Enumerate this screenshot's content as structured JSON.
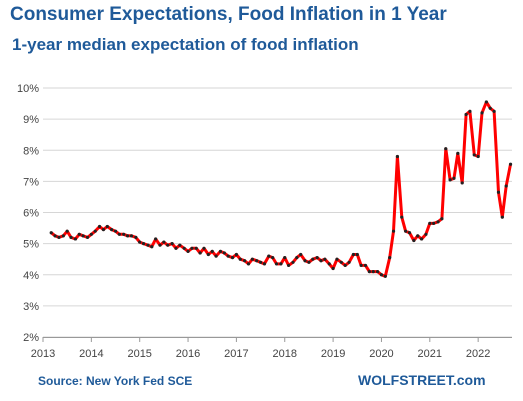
{
  "chart_data": {
    "type": "line",
    "title": "Consumer Expectations, Food Inflation in 1 Year",
    "subtitle": "1-year median expectation of food inflation",
    "source": "Source: New York Fed SCE",
    "brand": "WOLFSTREET.com",
    "xlabel": "",
    "ylabel": "",
    "xlim": [
      2013,
      2022.7
    ],
    "ylim": [
      2,
      10
    ],
    "y_ticks": [
      2,
      3,
      4,
      5,
      6,
      7,
      8,
      9,
      10
    ],
    "y_tick_labels": [
      "2%",
      "3%",
      "4%",
      "5%",
      "6%",
      "7%",
      "8%",
      "9%",
      "10%"
    ],
    "x_ticks": [
      2013,
      2014,
      2015,
      2016,
      2017,
      2018,
      2019,
      2020,
      2021,
      2022
    ],
    "x_tick_labels": [
      "2013",
      "2014",
      "2015",
      "2016",
      "2017",
      "2018",
      "2019",
      "2020",
      "2021",
      "2022"
    ],
    "grid": "horizontal",
    "line_color": "#ff0000",
    "marker_color": "#222222",
    "series": [
      {
        "values": [
          [
            2013.17,
            5.35
          ],
          [
            2013.25,
            5.25
          ],
          [
            2013.33,
            5.2
          ],
          [
            2013.42,
            5.25
          ],
          [
            2013.5,
            5.4
          ],
          [
            2013.58,
            5.2
          ],
          [
            2013.67,
            5.15
          ],
          [
            2013.75,
            5.3
          ],
          [
            2013.83,
            5.25
          ],
          [
            2013.92,
            5.2
          ],
          [
            2014.0,
            5.3
          ],
          [
            2014.08,
            5.4
          ],
          [
            2014.17,
            5.55
          ],
          [
            2014.25,
            5.45
          ],
          [
            2014.33,
            5.55
          ],
          [
            2014.42,
            5.45
          ],
          [
            2014.5,
            5.4
          ],
          [
            2014.58,
            5.3
          ],
          [
            2014.67,
            5.3
          ],
          [
            2014.75,
            5.25
          ],
          [
            2014.83,
            5.25
          ],
          [
            2014.92,
            5.2
          ],
          [
            2015.0,
            5.05
          ],
          [
            2015.08,
            5.0
          ],
          [
            2015.17,
            4.95
          ],
          [
            2015.25,
            4.9
          ],
          [
            2015.33,
            5.15
          ],
          [
            2015.42,
            4.95
          ],
          [
            2015.5,
            5.05
          ],
          [
            2015.58,
            4.95
          ],
          [
            2015.67,
            5.0
          ],
          [
            2015.75,
            4.85
          ],
          [
            2015.83,
            4.95
          ],
          [
            2015.92,
            4.85
          ],
          [
            2016.0,
            4.75
          ],
          [
            2016.08,
            4.85
          ],
          [
            2016.17,
            4.85
          ],
          [
            2016.25,
            4.7
          ],
          [
            2016.33,
            4.85
          ],
          [
            2016.42,
            4.65
          ],
          [
            2016.5,
            4.75
          ],
          [
            2016.58,
            4.6
          ],
          [
            2016.67,
            4.75
          ],
          [
            2016.75,
            4.7
          ],
          [
            2016.83,
            4.6
          ],
          [
            2016.92,
            4.55
          ],
          [
            2017.0,
            4.65
          ],
          [
            2017.08,
            4.5
          ],
          [
            2017.17,
            4.45
          ],
          [
            2017.25,
            4.35
          ],
          [
            2017.33,
            4.5
          ],
          [
            2017.42,
            4.45
          ],
          [
            2017.5,
            4.4
          ],
          [
            2017.58,
            4.35
          ],
          [
            2017.67,
            4.6
          ],
          [
            2017.75,
            4.55
          ],
          [
            2017.83,
            4.35
          ],
          [
            2017.92,
            4.35
          ],
          [
            2018.0,
            4.55
          ],
          [
            2018.08,
            4.3
          ],
          [
            2018.17,
            4.4
          ],
          [
            2018.25,
            4.55
          ],
          [
            2018.33,
            4.65
          ],
          [
            2018.42,
            4.45
          ],
          [
            2018.5,
            4.4
          ],
          [
            2018.58,
            4.5
          ],
          [
            2018.67,
            4.55
          ],
          [
            2018.75,
            4.45
          ],
          [
            2018.83,
            4.5
          ],
          [
            2018.92,
            4.35
          ],
          [
            2019.0,
            4.2
          ],
          [
            2019.08,
            4.5
          ],
          [
            2019.17,
            4.4
          ],
          [
            2019.25,
            4.3
          ],
          [
            2019.33,
            4.4
          ],
          [
            2019.42,
            4.65
          ],
          [
            2019.5,
            4.65
          ],
          [
            2019.58,
            4.3
          ],
          [
            2019.67,
            4.3
          ],
          [
            2019.75,
            4.1
          ],
          [
            2019.83,
            4.1
          ],
          [
            2019.92,
            4.1
          ],
          [
            2020.0,
            4.0
          ],
          [
            2020.08,
            3.95
          ],
          [
            2020.17,
            4.55
          ],
          [
            2020.25,
            5.4
          ],
          [
            2020.33,
            7.8
          ],
          [
            2020.42,
            5.85
          ],
          [
            2020.5,
            5.4
          ],
          [
            2020.58,
            5.35
          ],
          [
            2020.67,
            5.1
          ],
          [
            2020.75,
            5.25
          ],
          [
            2020.83,
            5.15
          ],
          [
            2020.92,
            5.3
          ],
          [
            2021.0,
            5.65
          ],
          [
            2021.08,
            5.65
          ],
          [
            2021.17,
            5.7
          ],
          [
            2021.25,
            5.8
          ],
          [
            2021.33,
            8.05
          ],
          [
            2021.42,
            7.05
          ],
          [
            2021.5,
            7.1
          ],
          [
            2021.58,
            7.9
          ],
          [
            2021.67,
            6.95
          ],
          [
            2021.75,
            9.15
          ],
          [
            2021.83,
            9.25
          ],
          [
            2021.92,
            7.85
          ],
          [
            2022.0,
            7.8
          ],
          [
            2022.08,
            9.2
          ],
          [
            2022.17,
            9.55
          ],
          [
            2022.25,
            9.35
          ],
          [
            2022.33,
            9.25
          ],
          [
            2022.42,
            6.65
          ],
          [
            2022.5,
            5.85
          ],
          [
            2022.58,
            6.85
          ],
          [
            2022.67,
            7.55
          ]
        ]
      }
    ]
  }
}
